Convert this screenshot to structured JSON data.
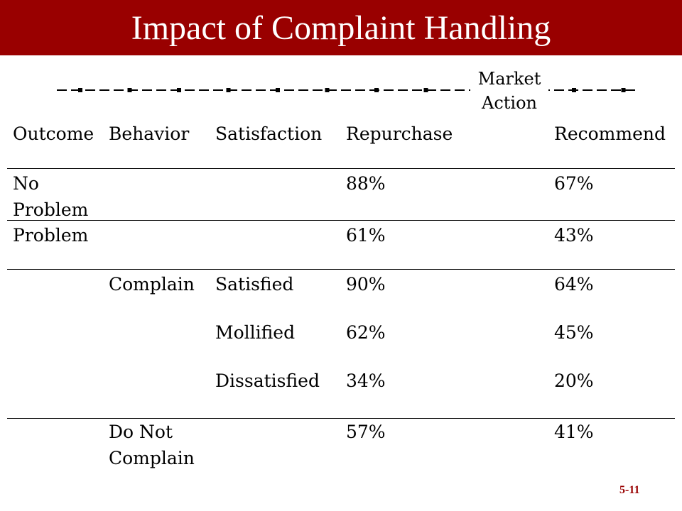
{
  "slide": {
    "title": "Impact of Complaint Handling",
    "market_action": "Market\nAction",
    "page_number": "5-11",
    "accent_color": "#990000"
  },
  "table": {
    "headers": [
      "Outcome",
      "Behavior",
      "Satisfaction",
      "Repurchase",
      "Recommend"
    ],
    "rows": [
      {
        "outcome": "No\nProblem",
        "behavior": "",
        "satisfaction": "",
        "repurchase": "88%",
        "recommend": "67%"
      },
      {
        "outcome": "Problem",
        "behavior": "",
        "satisfaction": "",
        "repurchase": "61%",
        "recommend": "43%"
      },
      {
        "outcome": "",
        "behavior": "Complain",
        "satisfaction": "Satisfied",
        "repurchase": "90%",
        "recommend": "64%"
      },
      {
        "outcome": "",
        "behavior": "",
        "satisfaction": "Mollified",
        "repurchase": "62%",
        "recommend": "45%"
      },
      {
        "outcome": "",
        "behavior": "",
        "satisfaction": "Dissatisfied",
        "repurchase": "34%",
        "recommend": "20%"
      },
      {
        "outcome": "",
        "behavior": "Do Not\nComplain",
        "satisfaction": "",
        "repurchase": "57%",
        "recommend": "41%"
      }
    ]
  }
}
